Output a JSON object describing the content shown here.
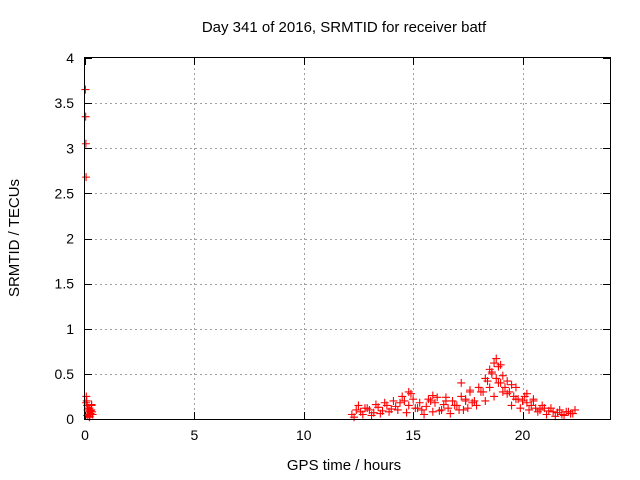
{
  "chart_data": {
    "type": "scatter",
    "title": "Day 341 of 2016, SRMTID for receiver batf",
    "xlabel": "GPS time / hours",
    "ylabel": "SRMTID / TECUs",
    "xlim": [
      0,
      24
    ],
    "ylim": [
      0,
      4
    ],
    "x_ticks": [
      0,
      5,
      10,
      15,
      20
    ],
    "x_tick_labels": [
      "0",
      "5",
      "10",
      "15",
      "20"
    ],
    "y_ticks": [
      0,
      0.5,
      1,
      1.5,
      2,
      2.5,
      3,
      3.5,
      4
    ],
    "y_tick_labels": [
      "0",
      "0.5",
      "1",
      "1.5",
      "2",
      "2.5",
      "3",
      "3.5",
      "4"
    ],
    "grid": true,
    "marker": "plus",
    "color": "#ff0000",
    "series": [
      {
        "name": "SRMTID",
        "x": [
          0.02,
          0.03,
          0.04,
          0.05,
          0.06,
          0.08,
          0.1,
          0.12,
          0.15,
          0.18,
          0.2,
          0.22,
          0.25,
          0.28,
          0.3,
          0.32,
          0.35,
          0.05,
          0.1,
          0.15,
          0.2,
          0.25,
          0.3,
          12.2,
          12.4,
          12.6,
          12.8,
          13.0,
          13.2,
          13.4,
          13.6,
          13.8,
          14.0,
          14.2,
          14.4,
          14.6,
          14.8,
          15.0,
          15.2,
          15.4,
          15.6,
          15.8,
          16.0,
          16.2,
          16.4,
          16.6,
          16.8,
          17.0,
          17.2,
          17.4,
          17.6,
          17.8,
          18.0,
          18.2,
          18.4,
          18.6,
          18.8,
          19.0,
          19.2,
          19.4,
          19.6,
          19.8,
          20.0,
          20.2,
          20.4,
          20.6,
          20.8,
          21.0,
          21.2,
          21.4,
          21.6,
          21.8,
          22.0,
          22.2,
          22.4,
          12.3,
          12.7,
          13.1,
          13.5,
          13.9,
          14.3,
          14.7,
          15.1,
          15.5,
          15.9,
          16.3,
          16.7,
          17.1,
          17.5,
          17.9,
          18.3,
          18.7,
          19.1,
          19.5,
          19.9,
          20.3,
          20.7,
          21.1,
          21.5,
          21.9,
          22.3,
          12.5,
          12.9,
          13.3,
          13.7,
          14.1,
          14.5,
          14.9,
          15.3,
          15.7,
          16.1,
          16.5,
          16.9,
          17.3,
          17.7,
          18.1,
          18.5,
          18.9,
          19.3,
          19.7,
          20.1,
          20.5,
          20.9,
          21.3,
          21.7,
          22.1,
          17.4,
          17.6,
          18.5,
          18.7,
          18.8,
          18.9,
          19.1,
          19.3,
          19.5,
          19.7,
          19.0,
          18.6,
          18.3,
          20.2,
          20.5,
          14.8,
          15.9,
          16.5,
          17.2
        ],
        "y": [
          3.65,
          3.35,
          3.05,
          2.68,
          0.25,
          0.2,
          0.15,
          0.1,
          0.08,
          0.05,
          0.12,
          0.03,
          0.06,
          0.1,
          0.15,
          0.08,
          0.05,
          0.18,
          0.04,
          0.12,
          0.02,
          0.09,
          0.16,
          0.05,
          0.1,
          0.08,
          0.12,
          0.1,
          0.07,
          0.13,
          0.09,
          0.15,
          0.11,
          0.14,
          0.18,
          0.2,
          0.15,
          0.22,
          0.12,
          0.1,
          0.14,
          0.2,
          0.18,
          0.09,
          0.16,
          0.12,
          0.2,
          0.15,
          0.25,
          0.22,
          0.3,
          0.2,
          0.35,
          0.3,
          0.42,
          0.5,
          0.45,
          0.4,
          0.35,
          0.3,
          0.25,
          0.22,
          0.2,
          0.18,
          0.15,
          0.12,
          0.1,
          0.12,
          0.09,
          0.08,
          0.07,
          0.05,
          0.08,
          0.06,
          0.1,
          0.02,
          0.05,
          0.04,
          0.06,
          0.08,
          0.1,
          0.07,
          0.12,
          0.05,
          0.08,
          0.1,
          0.06,
          0.1,
          0.12,
          0.15,
          0.2,
          0.25,
          0.3,
          0.15,
          0.12,
          0.1,
          0.08,
          0.05,
          0.03,
          0.04,
          0.06,
          0.15,
          0.12,
          0.16,
          0.18,
          0.2,
          0.25,
          0.28,
          0.18,
          0.22,
          0.24,
          0.2,
          0.15,
          0.1,
          0.18,
          0.3,
          0.35,
          0.4,
          0.28,
          0.22,
          0.25,
          0.2,
          0.15,
          0.12,
          0.1,
          0.08,
          0.2,
          0.32,
          0.55,
          0.62,
          0.67,
          0.58,
          0.48,
          0.42,
          0.38,
          0.35,
          0.6,
          0.52,
          0.45,
          0.28,
          0.22,
          0.3,
          0.26,
          0.24,
          0.4
        ]
      }
    ]
  }
}
